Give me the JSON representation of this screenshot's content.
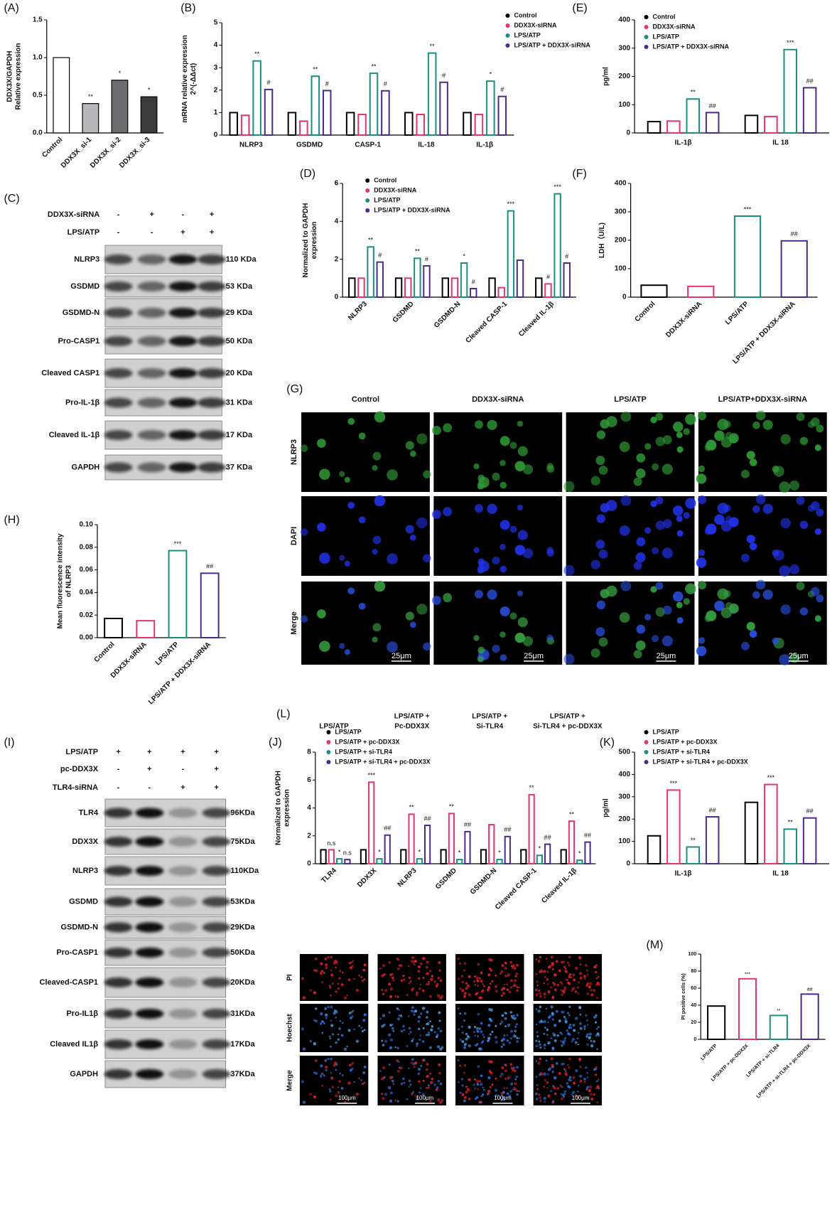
{
  "chart_data": [
    {
      "type": "bar",
      "title": "(A)",
      "y_label": [
        "DDX3X/GAPDH",
        "Relative expression"
      ],
      "categories": [
        "Control",
        "DDX3X_si-1",
        "DDX3X_si-2",
        "DDX3X_si-3"
      ],
      "values": [
        1.0,
        0.39,
        0.7,
        0.48
      ],
      "marks": [
        null,
        "**",
        "*",
        "*"
      ],
      "colors": [
        "#ffffff",
        "#b8b8bc",
        "#6d6d70",
        "#3b3b3e"
      ],
      "bar_style": "filled",
      "ylim": [
        0,
        1.5
      ],
      "yticks": [
        {
          "value": 0,
          "label": "0.0"
        },
        0.5,
        {
          "value": 1,
          "label": "1.0"
        },
        1.5
      ]
    },
    {
      "type": "bar",
      "title": "(B)",
      "y_label": [
        "mRNA relative expression",
        "2^(-ΔΔct)"
      ],
      "categories": [
        "NLRP3",
        "GSDMD",
        "CASP-1",
        "IL-18",
        "IL-1β"
      ],
      "series": [
        {
          "name": "Control",
          "color": "#000000",
          "values": [
            1,
            1,
            1,
            1,
            1
          ],
          "marks": [
            null,
            null,
            null,
            null,
            null
          ]
        },
        {
          "name": "DDX3X-siRNA",
          "color": "#e8336b",
          "values": [
            0.88,
            0.62,
            0.92,
            0.92,
            0.92
          ],
          "marks": [
            null,
            null,
            null,
            null,
            null
          ]
        },
        {
          "name": "LPS/ATP",
          "color": "#1a9080",
          "values": [
            3.3,
            2.62,
            2.75,
            3.65,
            2.4
          ],
          "marks": [
            "**",
            "**",
            "**",
            "**",
            "*"
          ]
        },
        {
          "name": "LPS/ATP + DDX3X-siRNA",
          "color": "#4b2a8c",
          "values": [
            2.03,
            1.98,
            1.97,
            2.35,
            1.72
          ],
          "marks": [
            "#",
            "#",
            "#",
            "#",
            "#"
          ]
        }
      ],
      "bar_style": "outline",
      "ylim": [
        0,
        5
      ],
      "yticks": [
        0,
        1,
        2,
        3,
        4,
        5
      ]
    },
    {
      "type": "bar",
      "title": "(E)",
      "y_label": [
        "pg/ml"
      ],
      "categories": [
        "IL-1β",
        "IL 18"
      ],
      "series": [
        {
          "name": "Control",
          "color": "#000000",
          "values": [
            40,
            62
          ],
          "marks": [
            null,
            null
          ]
        },
        {
          "name": "DDX3X-siRNA",
          "color": "#e8336b",
          "values": [
            42,
            58
          ],
          "marks": [
            null,
            null
          ]
        },
        {
          "name": "LPS/ATP",
          "color": "#1a9080",
          "values": [
            120,
            295
          ],
          "marks": [
            "**",
            "***"
          ]
        },
        {
          "name": "LPS/ATP + DDX3X-siRNA",
          "color": "#4b2a8c",
          "values": [
            72,
            160
          ],
          "marks": [
            "##",
            "##"
          ]
        }
      ],
      "bar_style": "outline",
      "ylim": [
        0,
        400
      ],
      "yticks": [
        0,
        100,
        200,
        300,
        400
      ]
    },
    {
      "type": "bar",
      "title": "(D)",
      "y_label": [
        "Normalized to GAPDH",
        "expression"
      ],
      "categories": [
        "NLRP3",
        "GSDMD",
        "GSDMD-N",
        "Cleaved CASP-1",
        "Cleaved IL-1β"
      ],
      "series": [
        {
          "name": "Control",
          "color": "#000000",
          "values": [
            1,
            1,
            1,
            1,
            1
          ],
          "marks": [
            null,
            null,
            null,
            null,
            null
          ]
        },
        {
          "name": "DDX3X-siRNA",
          "color": "#e8336b",
          "values": [
            1,
            1,
            1,
            0.5,
            0.7
          ],
          "marks": [
            null,
            null,
            null,
            null,
            "#"
          ]
        },
        {
          "name": "LPS/ATP",
          "color": "#1a9080",
          "values": [
            2.65,
            2.05,
            1.8,
            4.55,
            5.45
          ],
          "marks": [
            "**",
            "**",
            "*",
            "***",
            "***"
          ]
        },
        {
          "name": "LPS/ATP + DDX3X-siRNA",
          "color": "#4b2a8c",
          "values": [
            1.85,
            1.65,
            0.45,
            1.95,
            1.8
          ],
          "marks": [
            "#",
            "#",
            "#",
            null,
            "#"
          ]
        }
      ],
      "bar_style": "outline",
      "ylim": [
        0,
        6
      ],
      "yticks": [
        0,
        2,
        4,
        6
      ]
    },
    {
      "type": "bar",
      "title": "(F)",
      "y_label": [
        "LDH（U/L)"
      ],
      "categories": [
        "Control",
        "DDX3X-siRNA",
        "LPS/ATP",
        "LPS/ATP + DDX3X-siRNA"
      ],
      "values": [
        42,
        38,
        285,
        198
      ],
      "marks": [
        null,
        null,
        "***",
        "##"
      ],
      "colors": [
        "#000000",
        "#e8336b",
        "#1a9080",
        "#4b2a8c"
      ],
      "bar_style": "outline",
      "ylim": [
        0,
        400
      ],
      "yticks": [
        0,
        100,
        200,
        300,
        400
      ]
    },
    {
      "type": "bar",
      "title": "(H)",
      "y_label": [
        "Mean fluorescence intensity",
        "of NLRP3"
      ],
      "categories": [
        "Control",
        "DDX3X-siRNA",
        "LPS/ATP",
        "LPS/ATP + DDX3X-siRNA"
      ],
      "values": [
        0.017,
        0.015,
        0.077,
        0.057
      ],
      "marks": [
        null,
        null,
        "***",
        "##"
      ],
      "colors": [
        "#000000",
        "#e8336b",
        "#1a9080",
        "#4b2a8c"
      ],
      "bar_style": "outline",
      "ylim": [
        0,
        0.1
      ],
      "yticks": [
        {
          "value": 0,
          "label": "0.00"
        },
        0.02,
        0.04,
        0.06,
        0.08,
        {
          "value": 0.1,
          "label": "0.10"
        }
      ]
    },
    {
      "type": "bar",
      "title": "(J)",
      "y_label": [
        "Normalized to GAPDH",
        "expression"
      ],
      "categories": [
        "TLR4",
        "DDX3X",
        "NLRP3",
        "GSDMD",
        "GSDMD-N",
        "Cleaved CASP-1",
        "Cleaved IL-1β"
      ],
      "series": [
        {
          "name": "LPS/ATP",
          "color": "#000000",
          "values": [
            1,
            1,
            1,
            1,
            1,
            1,
            1
          ],
          "marks": [
            null,
            null,
            null,
            null,
            null,
            null,
            null
          ]
        },
        {
          "name": "LPS/ATP + pc-DDX3X",
          "color": "#e8336b",
          "values": [
            1,
            5.85,
            3.55,
            3.6,
            2.8,
            4.95,
            3.05
          ],
          "marks": [
            "n.s",
            "***",
            "**",
            "**",
            null,
            "**",
            "**"
          ]
        },
        {
          "name": "LPS/ATP + si-TLR4",
          "color": "#1a9080",
          "values": [
            0.35,
            0.35,
            0.35,
            0.3,
            0.3,
            0.6,
            0.25
          ],
          "marks": [
            "*",
            "*",
            "*",
            "*",
            "*",
            "*",
            "*"
          ]
        },
        {
          "name": "LPS/ATP + si-TLR4 + pc-DDX3X",
          "color": "#4b2a8c",
          "values": [
            0.3,
            2.05,
            2.75,
            2.3,
            1.95,
            1.4,
            1.55
          ],
          "marks": [
            "n.s",
            "##",
            "##",
            "##",
            "##",
            "##",
            "##"
          ]
        }
      ],
      "bar_style": "outline",
      "ylim": [
        0,
        8
      ],
      "yticks": [
        0,
        2,
        4,
        6,
        8
      ]
    },
    {
      "type": "bar",
      "title": "(K)",
      "y_label": [
        "pg/ml"
      ],
      "categories": [
        "IL-1β",
        "IL 18"
      ],
      "series": [
        {
          "name": "LPS/ATP",
          "color": "#000000",
          "values": [
            125,
            275
          ],
          "marks": [
            null,
            null
          ]
        },
        {
          "name": "LPS/ATP + pc-DDX3X",
          "color": "#e8336b",
          "values": [
            330,
            355
          ],
          "marks": [
            "***",
            "***"
          ]
        },
        {
          "name": "LPS/ATP + si-TLR4",
          "color": "#1a9080",
          "values": [
            75,
            155
          ],
          "marks": [
            "**",
            "**"
          ]
        },
        {
          "name": "LPS/ATP + si-TLR4 + pc-DDX3X",
          "color": "#4b2a8c",
          "values": [
            210,
            205
          ],
          "marks": [
            "##",
            "##"
          ]
        }
      ],
      "bar_style": "outline",
      "ylim": [
        0,
        500
      ],
      "yticks": [
        0,
        100,
        200,
        300,
        400,
        500
      ]
    },
    {
      "type": "bar",
      "title": "(M)",
      "y_label": [
        "PI positive cells (%)"
      ],
      "categories": [
        "LPS/ATP",
        "LPS/ATP + pc-DDX3X",
        "LPS/ATP + si-TLR4",
        "LPS/ATP + si-TLR4 + pc-DDX3X"
      ],
      "values": [
        39,
        71,
        28,
        53
      ],
      "marks": [
        null,
        "***",
        "**",
        "##"
      ],
      "colors": [
        "#000000",
        "#e8336b",
        "#1a9080",
        "#4b2a8c"
      ],
      "bar_style": "outline",
      "ylim": [
        0,
        100
      ],
      "yticks": [
        0,
        20,
        40,
        60,
        80,
        100
      ]
    }
  ],
  "western_blots": [
    {
      "title": "(C)",
      "conditions": [
        {
          "name": "DDX3X-siRNA",
          "signs": [
            "-",
            "+",
            "-",
            "+"
          ]
        },
        {
          "name": "LPS/ATP",
          "signs": [
            "-",
            "-",
            "+",
            "+"
          ]
        }
      ],
      "bands": [
        {
          "protein": "NLRP3",
          "size": "110 KDa"
        },
        {
          "protein": "GSDMD",
          "size": "53 KDa"
        },
        {
          "protein": "GSDMD-N",
          "size": "29 KDa"
        },
        {
          "protein": "Pro-CASP1",
          "size": "50 KDa"
        },
        {
          "protein": "Cleaved CASP1",
          "size": "20 KDa"
        },
        {
          "protein": "Pro-IL-1β",
          "size": "31 KDa"
        },
        {
          "protein": "Cleaved IL-1β",
          "size": "17 KDa"
        },
        {
          "protein": "GAPDH",
          "size": "37 KDa"
        }
      ]
    },
    {
      "title": "(I)",
      "conditions": [
        {
          "name": "LPS/ATP",
          "signs": [
            "+",
            "+",
            "+",
            "+"
          ]
        },
        {
          "name": "pc-DDX3X",
          "signs": [
            "-",
            "+",
            "-",
            "+"
          ]
        },
        {
          "name": "TLR4-siRNA",
          "signs": [
            "-",
            "-",
            "+",
            "+"
          ]
        }
      ],
      "bands": [
        {
          "protein": "TLR4",
          "size": "96KDa"
        },
        {
          "protein": "DDX3X",
          "size": "75KDa"
        },
        {
          "protein": "NLRP3",
          "size": "110KDa"
        },
        {
          "protein": "GSDMD",
          "size": "53KDa"
        },
        {
          "protein": "GSDMD-N",
          "size": "29KDa"
        },
        {
          "protein": "Pro-CASP1",
          "size": "50KDa"
        },
        {
          "protein": "Cleaved-CASP1",
          "size": "20KDa"
        },
        {
          "protein": "Pro-IL1β",
          "size": "31KDa"
        },
        {
          "protein": "Cleaved IL1β",
          "size": "17KDa"
        },
        {
          "protein": "GAPDH",
          "size": "37KDa"
        }
      ]
    }
  ],
  "micrographs": [
    {
      "title": "(G)",
      "columns": [
        [
          "Control"
        ],
        [
          "DDX3X-siRNA"
        ],
        [
          "LPS/ATP"
        ],
        [
          "LPS/ATP+DDX3X-siRNA"
        ]
      ],
      "rows": [
        "NLRP3",
        "DAPI",
        "Merge"
      ],
      "scale_bar": "25μm"
    },
    {
      "title": "(L)",
      "columns": [
        [
          "LPS/ATP"
        ],
        [
          "LPS/ATP +",
          "Pc-DDX3X"
        ],
        [
          "LPS/ATP +",
          "Si-TLR4"
        ],
        [
          "LPS/ATP +",
          "Si-TLR4 + pc-DDX3X"
        ]
      ],
      "rows": [
        "PI",
        "Hoechst",
        "Merge"
      ],
      "scale_bar": "100μm"
    }
  ]
}
